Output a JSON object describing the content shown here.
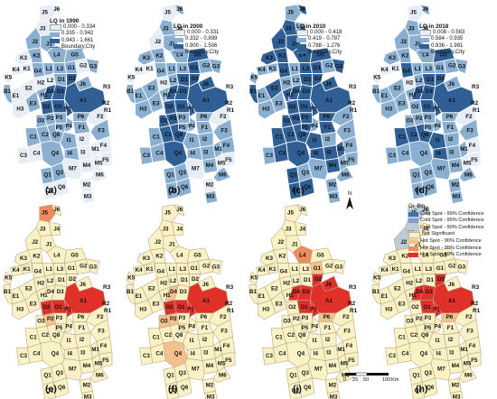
{
  "captions": [
    "(a)",
    "(b)",
    "(c)",
    "(d)",
    "(e)",
    "(f)",
    "(j)",
    "(h)"
  ],
  "lq_legends": [
    {
      "title": "LQ in 1990",
      "classes": [
        "0.000 - 0.334",
        "0.335 - 0.942",
        "0.943 - 1.661"
      ],
      "boundary": "Boundary,City"
    },
    {
      "title": "LQ in 2000",
      "classes": [
        "0.000 - 0.331",
        "0.332 - 0.899",
        "0.900 - 1.506"
      ],
      "boundary": "Boundary,City"
    },
    {
      "title": "LQ in 2010",
      "classes": [
        "0.000 - 0.418",
        "0.419 - 0.787",
        "0.788 - 1.276"
      ],
      "boundary": "Boundary,City"
    },
    {
      "title": "LQ in 2018",
      "classes": [
        "0.008 - 0.583",
        "0.584 - 0.935",
        "0.936 - 1.981"
      ],
      "boundary": "Boundary,City"
    }
  ],
  "hotspot_legend": {
    "title": "Gi_Bin",
    "classes": [
      "Cold Spot - 99% Confidence",
      "Cold Spot - 95% Confidence",
      "Cold Spot - 90% Confidence",
      "Not Significant",
      "Hot Spot - 90% Confidence",
      "Hot Spot - 95% Confidence",
      "Hot Spot - 99% Confidence"
    ]
  },
  "north_label": "N",
  "scale": {
    "ticks": [
      "0",
      "25",
      "50",
      "100"
    ],
    "unit": "Km"
  },
  "colors": {
    "lq_low": "#e6edf5",
    "lq_mid": "#8aafd0",
    "lq_high": "#2f5f95",
    "cold99": "#3d6fb0",
    "cold95": "#7fa0c7",
    "cold90": "#bccbd8",
    "not_sig": "#faf1c4",
    "hot90": "#f4c18d",
    "hot95": "#ef8a5f",
    "hot99": "#e0302a",
    "boundary": "#6a6f8f"
  },
  "regions": [
    {
      "id": "J5",
      "lq": [
        0,
        0,
        1,
        0
      ],
      "gi": [
        5,
        0,
        0,
        2
      ]
    },
    {
      "id": "J6",
      "lq": [
        0,
        1,
        2,
        1
      ],
      "gi": [
        0,
        0,
        0,
        2
      ]
    },
    {
      "id": "J3",
      "lq": [
        0,
        1,
        2,
        1
      ],
      "gi": [
        0,
        0,
        0,
        2
      ]
    },
    {
      "id": "J2",
      "lq": [
        1,
        0,
        2,
        1
      ],
      "gi": [
        0,
        0,
        0,
        2
      ]
    },
    {
      "id": "J1",
      "lq": [
        1,
        1,
        2,
        1
      ],
      "gi": [
        0,
        0,
        0,
        0
      ]
    },
    {
      "id": "J4",
      "lq": [
        0,
        0,
        1,
        0
      ],
      "gi": [
        0,
        0,
        0,
        0
      ]
    },
    {
      "id": "K2",
      "lq": [
        1,
        1,
        2,
        1
      ],
      "gi": [
        0,
        0,
        0,
        0
      ]
    },
    {
      "id": "K3",
      "lq": [
        0,
        1,
        2,
        1
      ],
      "gi": [
        0,
        0,
        0,
        0
      ]
    },
    {
      "id": "K1",
      "lq": [
        0,
        0,
        1,
        0
      ],
      "gi": [
        0,
        0,
        0,
        0
      ]
    },
    {
      "id": "K4",
      "lq": [
        0,
        0,
        1,
        0
      ],
      "gi": [
        0,
        0,
        0,
        0
      ]
    },
    {
      "id": "K5",
      "lq": [
        0,
        0,
        1,
        0
      ],
      "gi": [
        0,
        0,
        0,
        0
      ]
    },
    {
      "id": "L4",
      "lq": [
        1,
        1,
        2,
        1
      ],
      "gi": [
        0,
        0,
        5,
        0
      ]
    },
    {
      "id": "L1",
      "lq": [
        1,
        1,
        1,
        1
      ],
      "gi": [
        0,
        0,
        0,
        0
      ]
    },
    {
      "id": "L2",
      "lq": [
        0,
        1,
        1,
        1
      ],
      "gi": [
        0,
        0,
        0,
        0
      ]
    },
    {
      "id": "L3",
      "lq": [
        1,
        1,
        2,
        1
      ],
      "gi": [
        0,
        0,
        0,
        0
      ]
    },
    {
      "id": "G4",
      "lq": [
        1,
        1,
        2,
        2
      ],
      "gi": [
        0,
        0,
        0,
        0
      ]
    },
    {
      "id": "G1",
      "lq": [
        1,
        2,
        2,
        1
      ],
      "gi": [
        0,
        0,
        4,
        0
      ]
    },
    {
      "id": "G2",
      "lq": [
        0,
        1,
        1,
        1
      ],
      "gi": [
        0,
        0,
        0,
        0
      ]
    },
    {
      "id": "G3",
      "lq": [
        1,
        1,
        2,
        1
      ],
      "gi": [
        0,
        0,
        0,
        0
      ]
    },
    {
      "id": "G5",
      "lq": [
        1,
        2,
        2,
        2
      ],
      "gi": [
        0,
        0,
        0,
        0
      ]
    },
    {
      "id": "J6b",
      "lq": [
        1,
        2,
        2,
        1
      ],
      "gi": [
        0,
        0,
        6,
        0
      ]
    },
    {
      "id": "E1",
      "lq": [
        0,
        1,
        1,
        1
      ],
      "gi": [
        0,
        0,
        0,
        0
      ]
    },
    {
      "id": "E2",
      "lq": [
        0,
        1,
        2,
        1
      ],
      "gi": [
        0,
        0,
        0,
        0
      ]
    },
    {
      "id": "E3",
      "lq": [
        1,
        1,
        1,
        1
      ],
      "gi": [
        0,
        0,
        0,
        0
      ]
    },
    {
      "id": "H1",
      "lq": [
        1,
        1,
        2,
        1
      ],
      "gi": [
        0,
        0,
        0,
        0
      ]
    },
    {
      "id": "H2",
      "lq": [
        0,
        0,
        1,
        0
      ],
      "gi": [
        0,
        0,
        0,
        0
      ]
    },
    {
      "id": "H3",
      "lq": [
        0,
        1,
        1,
        1
      ],
      "gi": [
        0,
        0,
        0,
        0
      ]
    },
    {
      "id": "D1",
      "lq": [
        1,
        2,
        2,
        2
      ],
      "gi": [
        0,
        0,
        0,
        0
      ]
    },
    {
      "id": "D2",
      "lq": [
        2,
        2,
        2,
        2
      ],
      "gi": [
        0,
        0,
        6,
        6
      ]
    },
    {
      "id": "D3",
      "lq": [
        2,
        2,
        2,
        2
      ],
      "gi": [
        0,
        0,
        6,
        6
      ]
    },
    {
      "id": "D4",
      "lq": [
        2,
        2,
        2,
        2
      ],
      "gi": [
        0,
        4,
        6,
        6
      ]
    },
    {
      "id": "A1",
      "lq": [
        2,
        2,
        2,
        2
      ],
      "gi": [
        6,
        6,
        6,
        6
      ]
    },
    {
      "id": "B1",
      "lq": [
        1,
        1,
        2,
        1
      ],
      "gi": [
        0,
        0,
        0,
        0
      ]
    },
    {
      "id": "O1",
      "lq": [
        2,
        2,
        2,
        2
      ],
      "gi": [
        6,
        6,
        6,
        6
      ]
    },
    {
      "id": "O2",
      "lq": [
        2,
        2,
        2,
        1
      ],
      "gi": [
        6,
        6,
        0,
        0
      ]
    },
    {
      "id": "O3",
      "lq": [
        1,
        2,
        2,
        1
      ],
      "gi": [
        0,
        4,
        0,
        0
      ]
    },
    {
      "id": "P1",
      "lq": [
        2,
        2,
        2,
        2
      ],
      "gi": [
        6,
        6,
        6,
        6
      ]
    },
    {
      "id": "P2",
      "lq": [
        1,
        2,
        2,
        1
      ],
      "gi": [
        4,
        4,
        0,
        0
      ]
    },
    {
      "id": "P3",
      "lq": [
        1,
        1,
        2,
        1
      ],
      "gi": [
        0,
        0,
        0,
        0
      ]
    },
    {
      "id": "P4",
      "lq": [
        1,
        1,
        1,
        1
      ],
      "gi": [
        0,
        0,
        0,
        0
      ]
    },
    {
      "id": "P5",
      "lq": [
        1,
        1,
        2,
        1
      ],
      "gi": [
        0,
        0,
        0,
        0
      ]
    },
    {
      "id": "P6",
      "lq": [
        1,
        1,
        2,
        1
      ],
      "gi": [
        0,
        0,
        4,
        4
      ]
    },
    {
      "id": "F1",
      "lq": [
        1,
        1,
        2,
        1
      ],
      "gi": [
        0,
        0,
        0,
        0
      ]
    },
    {
      "id": "F2",
      "lq": [
        0,
        0,
        1,
        0
      ],
      "gi": [
        0,
        0,
        0,
        0
      ]
    },
    {
      "id": "F3",
      "lq": [
        1,
        1,
        1,
        1
      ],
      "gi": [
        0,
        0,
        0,
        0
      ]
    },
    {
      "id": "F4",
      "lq": [
        0,
        1,
        1,
        0
      ],
      "gi": [
        0,
        0,
        0,
        0
      ]
    },
    {
      "id": "F5",
      "lq": [
        0,
        0,
        1,
        0
      ],
      "gi": [
        0,
        0,
        0,
        0
      ]
    },
    {
      "id": "C1",
      "lq": [
        1,
        1,
        2,
        2
      ],
      "gi": [
        0,
        0,
        0,
        0
      ]
    },
    {
      "id": "C2",
      "lq": [
        1,
        2,
        2,
        2
      ],
      "gi": [
        0,
        0,
        0,
        0
      ]
    },
    {
      "id": "C3",
      "lq": [
        0,
        1,
        1,
        1
      ],
      "gi": [
        0,
        0,
        0,
        0
      ]
    },
    {
      "id": "C4",
      "lq": [
        0,
        1,
        2,
        1
      ],
      "gi": [
        0,
        0,
        0,
        0
      ]
    },
    {
      "id": "Q1",
      "lq": [
        1,
        1,
        2,
        1
      ],
      "gi": [
        0,
        0,
        0,
        0
      ]
    },
    {
      "id": "Q2",
      "lq": [
        0,
        1,
        2,
        1
      ],
      "gi": [
        0,
        0,
        0,
        0
      ]
    },
    {
      "id": "Q3",
      "lq": [
        1,
        1,
        1,
        1
      ],
      "gi": [
        0,
        0,
        0,
        0
      ]
    },
    {
      "id": "Q4",
      "lq": [
        1,
        2,
        2,
        1
      ],
      "gi": [
        0,
        4,
        0,
        0
      ]
    },
    {
      "id": "Q6",
      "lq": [
        0,
        1,
        2,
        1
      ],
      "gi": [
        0,
        0,
        0,
        0
      ]
    },
    {
      "id": "Q8",
      "lq": [
        1,
        2,
        2,
        2
      ],
      "gi": [
        0,
        0,
        0,
        0
      ]
    },
    {
      "id": "I1",
      "lq": [
        1,
        1,
        2,
        2
      ],
      "gi": [
        0,
        0,
        0,
        0
      ]
    },
    {
      "id": "I2",
      "lq": [
        0,
        1,
        1,
        1
      ],
      "gi": [
        0,
        0,
        0,
        0
      ]
    },
    {
      "id": "I3",
      "lq": [
        0,
        1,
        2,
        1
      ],
      "gi": [
        0,
        0,
        0,
        0
      ]
    },
    {
      "id": "I4",
      "lq": [
        1,
        1,
        2,
        2
      ],
      "gi": [
        0,
        0,
        0,
        0
      ]
    },
    {
      "id": "M1",
      "lq": [
        0,
        1,
        2,
        1
      ],
      "gi": [
        0,
        0,
        0,
        0
      ]
    },
    {
      "id": "M2",
      "lq": [
        0,
        0,
        1,
        1
      ],
      "gi": [
        0,
        0,
        0,
        0
      ]
    },
    {
      "id": "M3",
      "lq": [
        0,
        1,
        1,
        1
      ],
      "gi": [
        0,
        0,
        0,
        0
      ]
    },
    {
      "id": "M4",
      "lq": [
        0,
        1,
        2,
        1
      ],
      "gi": [
        0,
        0,
        0,
        0
      ]
    },
    {
      "id": "M5",
      "lq": [
        0,
        0,
        1,
        0
      ],
      "gi": [
        0,
        0,
        0,
        0
      ]
    },
    {
      "id": "M6",
      "lq": [
        0,
        1,
        1,
        1
      ],
      "gi": [
        0,
        0,
        0,
        0
      ]
    },
    {
      "id": "M7",
      "lq": [
        0,
        0,
        1,
        1
      ],
      "gi": [
        0,
        0,
        0,
        0
      ]
    },
    {
      "id": "R1",
      "lq": [
        0,
        0,
        0,
        0
      ],
      "gi": [
        0,
        0,
        0,
        0
      ]
    },
    {
      "id": "R2",
      "lq": [
        0,
        0,
        0,
        0
      ],
      "gi": [
        0,
        0,
        0,
        0
      ]
    },
    {
      "id": "R3",
      "lq": [
        0,
        0,
        0,
        0
      ],
      "gi": [
        0,
        0,
        0,
        0
      ]
    }
  ]
}
